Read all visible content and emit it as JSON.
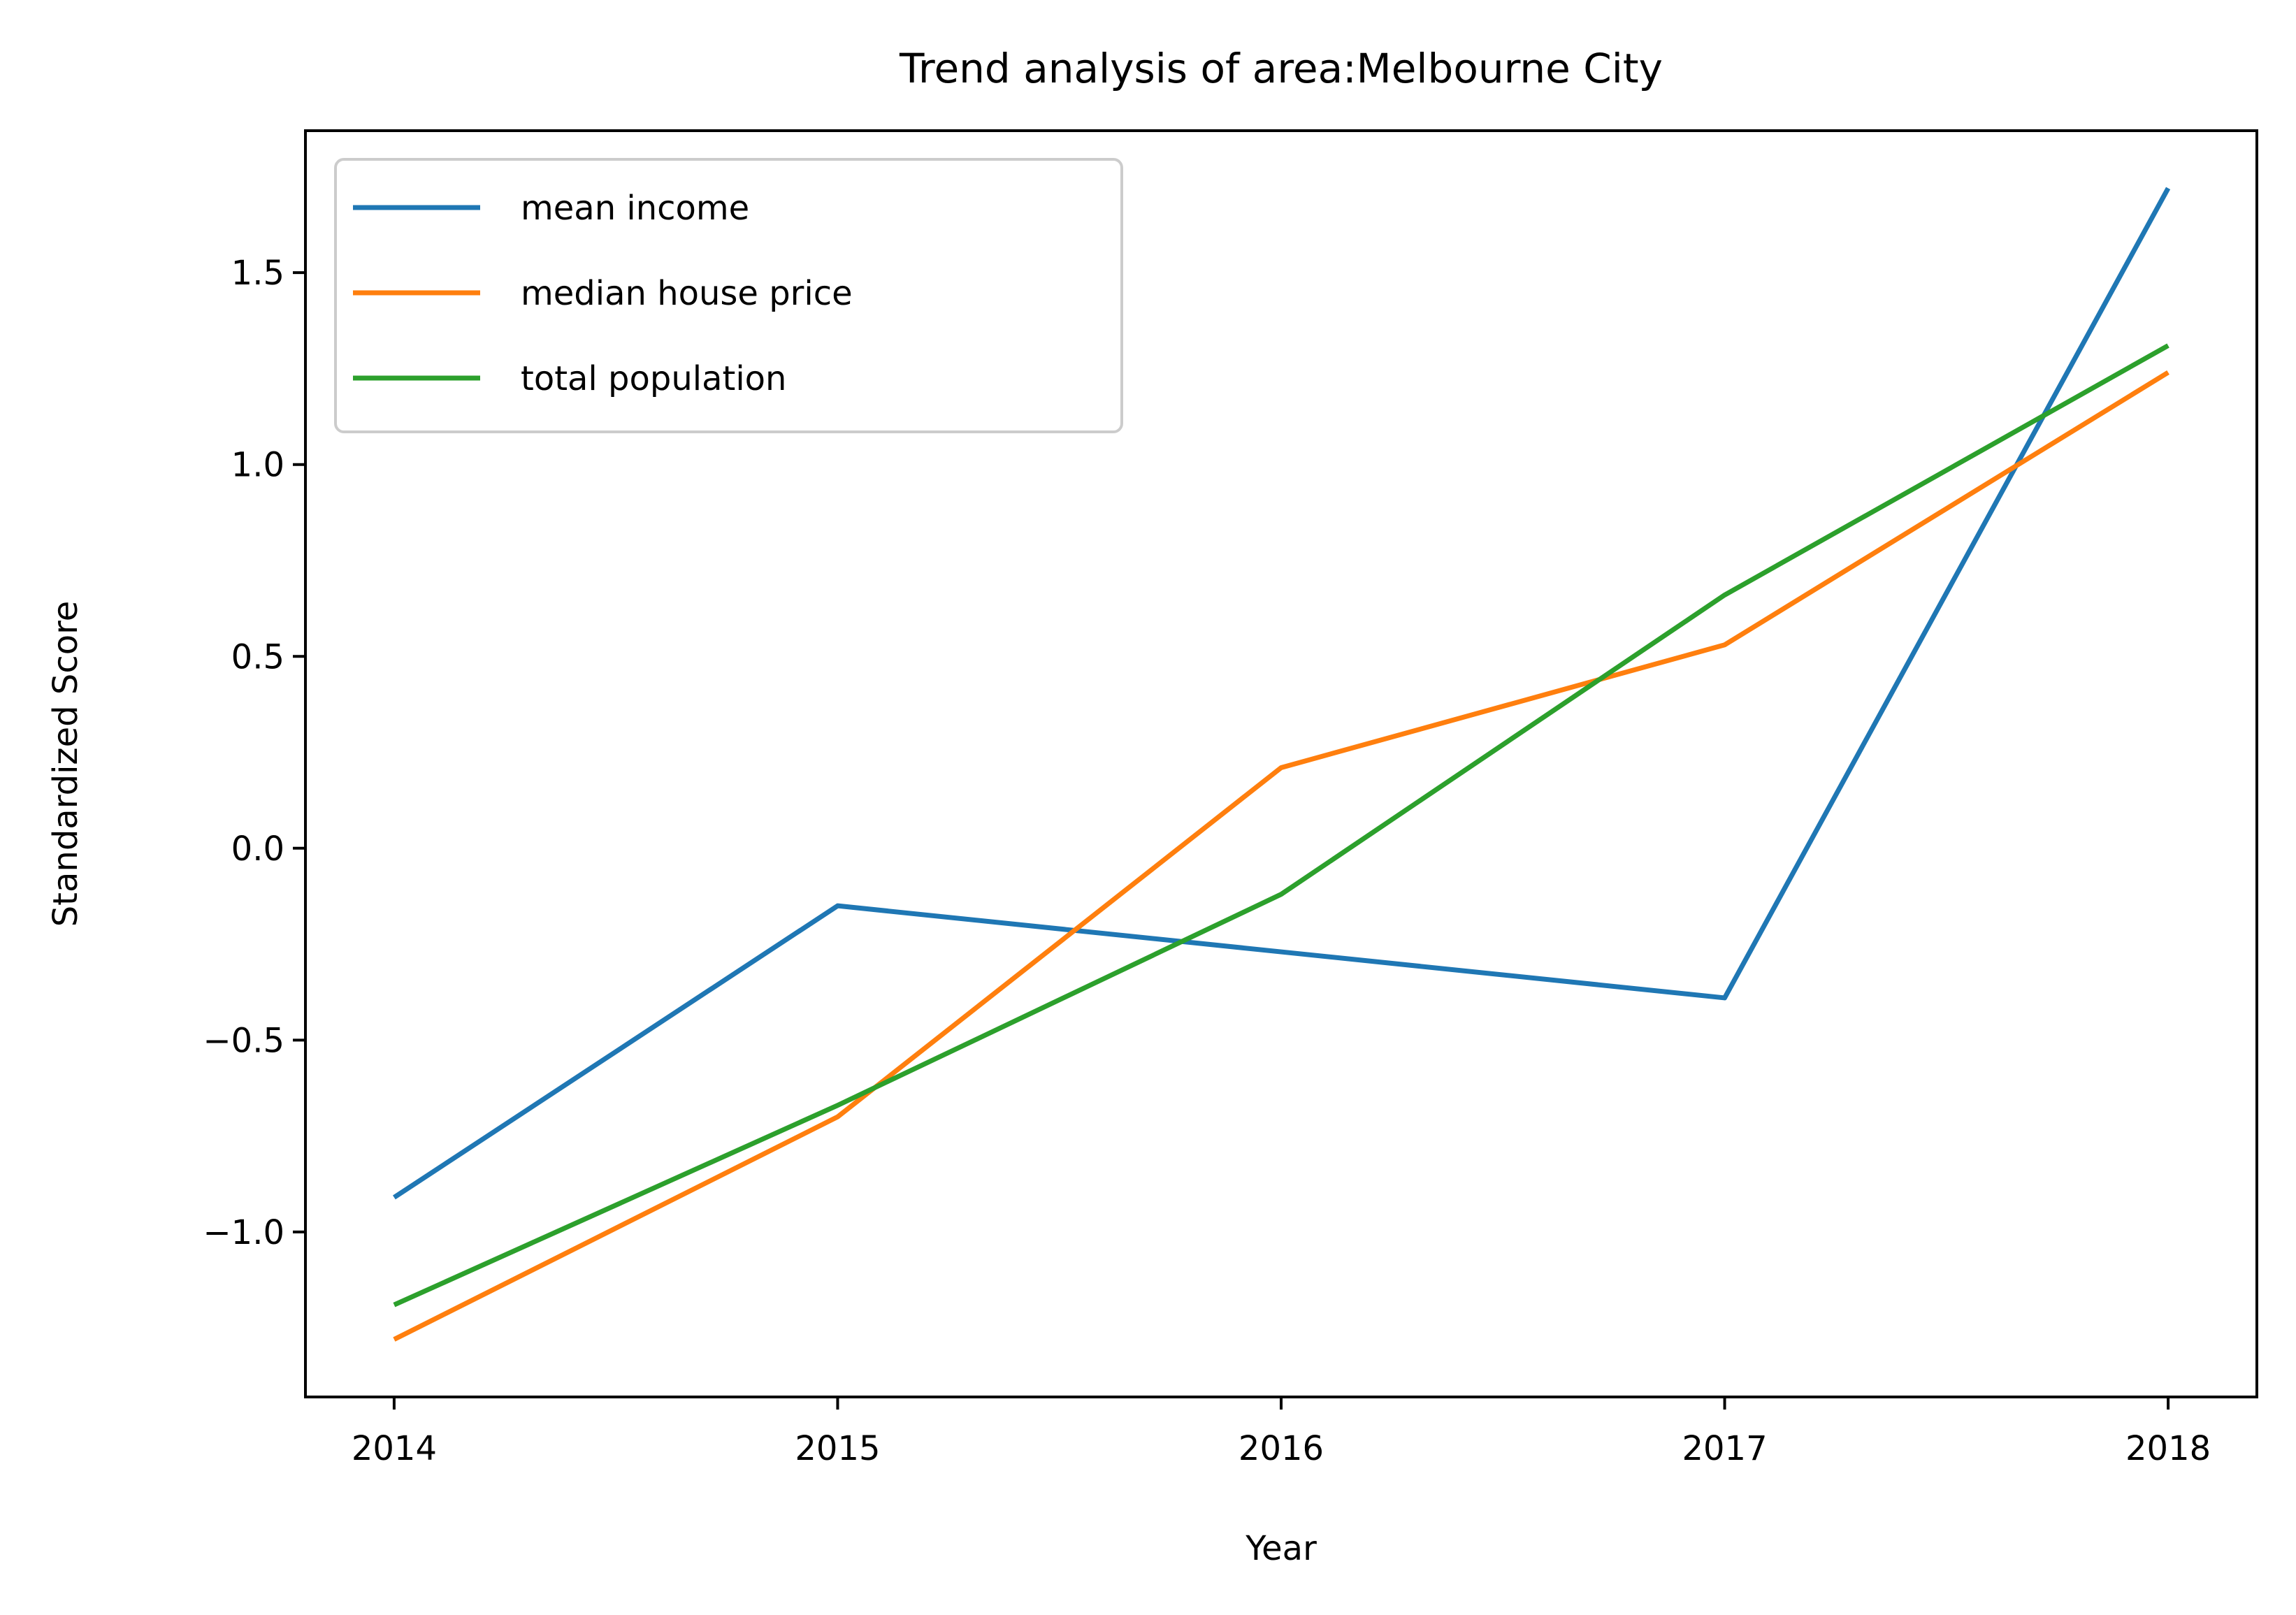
{
  "chart_data": {
    "type": "line",
    "title": "Trend analysis of area:Melbourne City",
    "xlabel": "Year",
    "ylabel": "Standardized Score",
    "x": [
      2014,
      2015,
      2016,
      2017,
      2018
    ],
    "xticks": [
      "2014",
      "2015",
      "2016",
      "2017",
      "2018"
    ],
    "yticks": [
      -1.0,
      -0.5,
      0.0,
      0.5,
      1.0,
      1.5
    ],
    "ytick_labels": [
      "−1.0",
      "−0.5",
      "0.0",
      "0.5",
      "1.0",
      "1.5"
    ],
    "xlim": [
      2013.8,
      2018.2
    ],
    "ylim": [
      -1.43,
      1.87
    ],
    "grid": false,
    "legend_position": "top-left",
    "series": [
      {
        "name": "mean income",
        "color": "#1f77b4",
        "values": [
          -0.91,
          -0.15,
          -0.27,
          -0.39,
          1.72
        ]
      },
      {
        "name": "median house price",
        "color": "#ff7f0e",
        "values": [
          -1.28,
          -0.7,
          0.21,
          0.53,
          1.24
        ]
      },
      {
        "name": "total population",
        "color": "#2ca02c",
        "values": [
          -1.19,
          -0.67,
          -0.12,
          0.66,
          1.31
        ]
      }
    ]
  }
}
